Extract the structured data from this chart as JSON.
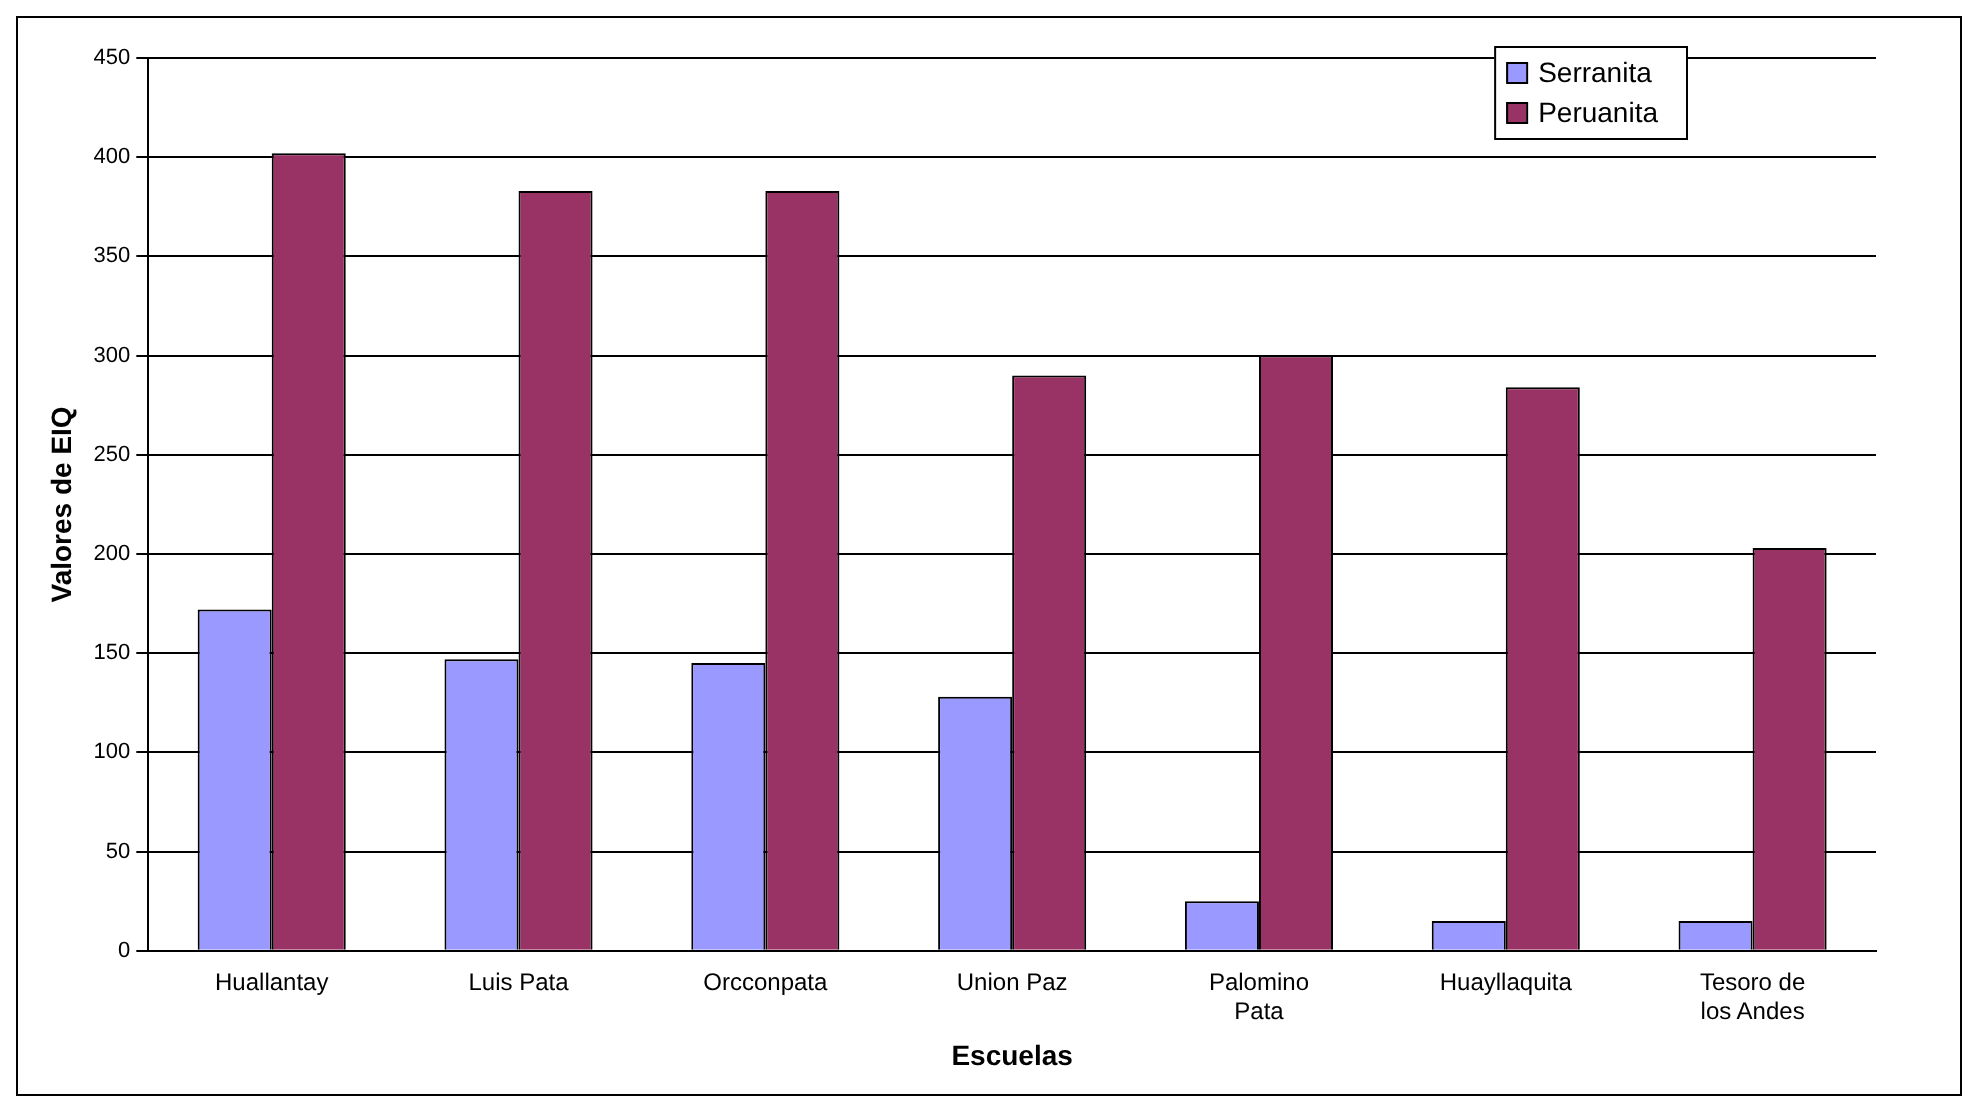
{
  "chart_data": {
    "type": "bar",
    "xlabel": "Escuelas",
    "ylabel": "Valores de EIQ",
    "categories": [
      "Huallantay",
      "Luis Pata",
      "Orcconpata",
      "Union Paz",
      "Palomino Pata",
      "Huayllaquita",
      "Tesoro de los Andes"
    ],
    "series": [
      {
        "name": "Serranita",
        "color": "#9999ff",
        "values": [
          172,
          147,
          145,
          128,
          25,
          15,
          15
        ]
      },
      {
        "name": "Peruanita",
        "color": "#993366",
        "values": [
          402,
          383,
          383,
          290,
          300,
          284,
          203
        ]
      }
    ],
    "ylim": [
      0,
      450
    ],
    "yticks": [
      0,
      50,
      100,
      150,
      200,
      250,
      300,
      350,
      400,
      450
    ],
    "grid": "y",
    "legend": "top right"
  }
}
